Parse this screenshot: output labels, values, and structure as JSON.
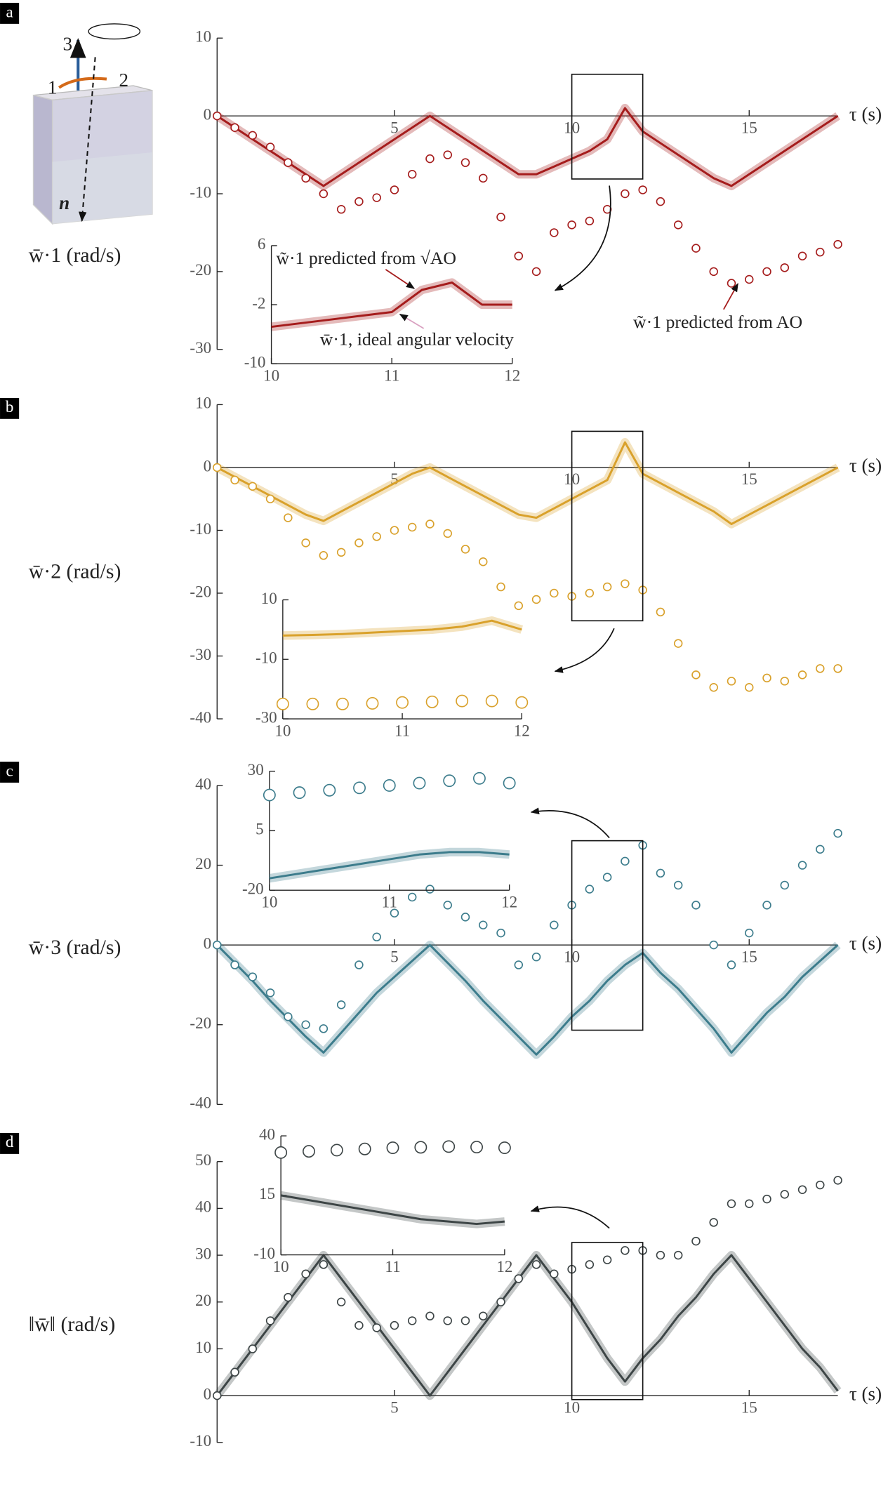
{
  "chart_data": [
    {
      "type": "line",
      "panel": "a",
      "ylabel": "w̄·1 (rad/s)",
      "xlabel": "τ (s)",
      "xlim": [
        0,
        17.5
      ],
      "ylim": [
        -30,
        10
      ],
      "xticks": [
        5,
        10,
        15
      ],
      "yticks": [
        10,
        0,
        -10,
        -20,
        -30
      ],
      "diagram_labels": [
        "3",
        "1",
        "2",
        "n"
      ],
      "annotations": [
        "w̃·1 predicted from √AO",
        "w̄·1, ideal angular velocity",
        "w̃·1 predicted from AO"
      ],
      "x": [
        0,
        0.5,
        1,
        1.5,
        2,
        2.5,
        3,
        3.5,
        4,
        4.5,
        5,
        5.5,
        6,
        6.5,
        7,
        7.5,
        8,
        8.5,
        9,
        9.5,
        10,
        10.5,
        11,
        11.5,
        12,
        12.5,
        13,
        13.5,
        14,
        14.5,
        15,
        15.5,
        16,
        16.5,
        17,
        17.5
      ],
      "series": [
        {
          "color": "#a51c1c",
          "band": true,
          "values": [
            0,
            -1.5,
            -3,
            -4.5,
            -6,
            -7.5,
            -9,
            -7.5,
            -6,
            -4.5,
            -3,
            -1.5,
            0,
            -1.5,
            -3,
            -4.5,
            -6,
            -7.5,
            -7.5,
            -6.5,
            -5.5,
            -4.5,
            -3,
            1,
            -2,
            -3.5,
            -5,
            -6.5,
            -8,
            -9,
            -7.5,
            -6,
            -4.5,
            -3,
            -1.5,
            0
          ]
        },
        {
          "color": "#a51c1c",
          "marker": "circle",
          "values": [
            0,
            -1.5,
            -2.5,
            -4,
            -6,
            -8,
            -10,
            -12,
            -11,
            -10.5,
            -9.5,
            -7.5,
            -5.5,
            -5,
            -6,
            -8,
            -13,
            -18,
            -20,
            -15,
            -14,
            -13.5,
            -12,
            -10,
            -9.5,
            -11,
            -14,
            -17,
            -20,
            -21.5,
            -21,
            -20,
            -19.5,
            -18,
            -17.5,
            -16.5
          ]
        }
      ],
      "inset": {
        "xlim": [
          10,
          12
        ],
        "ylim": [
          -10,
          6
        ],
        "xticks": [
          10,
          11,
          12
        ],
        "yticks": [
          6,
          -2,
          -10
        ],
        "x": [
          10,
          10.25,
          10.5,
          10.75,
          11,
          11.25,
          11.5,
          11.75,
          12
        ],
        "series": [
          {
            "color": "#a51c1c",
            "band": true,
            "values": [
              -5,
              -4.5,
              -4,
              -3.5,
              -3,
              0,
              1,
              -2,
              -2
            ]
          }
        ]
      }
    },
    {
      "type": "line",
      "panel": "b",
      "ylabel": "w̄·2 (rad/s)",
      "xlabel": "τ (s)",
      "xlim": [
        0,
        17.5
      ],
      "ylim": [
        -40,
        10
      ],
      "xticks": [
        5,
        10,
        15
      ],
      "yticks": [
        10,
        0,
        -10,
        -20,
        -30,
        -40
      ],
      "x": [
        0,
        0.5,
        1,
        1.5,
        2,
        2.5,
        3,
        3.5,
        4,
        4.5,
        5,
        5.5,
        6,
        6.5,
        7,
        7.5,
        8,
        8.5,
        9,
        9.5,
        10,
        10.5,
        11,
        11.5,
        12,
        12.5,
        13,
        13.5,
        14,
        14.5,
        15,
        15.5,
        16,
        16.5,
        17,
        17.5
      ],
      "series": [
        {
          "color": "#d9a12b",
          "band": true,
          "values": [
            0,
            -1.5,
            -3,
            -4.5,
            -6,
            -7.5,
            -8.5,
            -7,
            -5.5,
            -4,
            -2.5,
            -1,
            0,
            -1.5,
            -3,
            -4.5,
            -6,
            -7.5,
            -8,
            -6.5,
            -5,
            -3.5,
            -2,
            4,
            -1,
            -2.5,
            -4,
            -5.5,
            -7,
            -9,
            -7.5,
            -6,
            -4.5,
            -3,
            -1.5,
            0
          ]
        },
        {
          "color": "#d9a12b",
          "marker": "circle",
          "values": [
            0,
            -2,
            -3,
            -5,
            -8,
            -12,
            -14,
            -13.5,
            -12,
            -11,
            -10,
            -9.5,
            -9,
            -10.5,
            -13,
            -15,
            -19,
            -22,
            -21,
            -20,
            -20.5,
            -20,
            -19,
            -18.5,
            -19.5,
            -23,
            -28,
            -33,
            -35,
            -34,
            -35,
            -33.5,
            -34,
            -33,
            -32,
            -32
          ]
        }
      ],
      "inset": {
        "xlim": [
          10,
          12
        ],
        "ylim": [
          -30,
          10
        ],
        "xticks": [
          10,
          11,
          12
        ],
        "yticks": [
          10,
          -10,
          -30
        ],
        "x": [
          10,
          10.25,
          10.5,
          10.75,
          11,
          11.25,
          11.5,
          11.75,
          12
        ],
        "series": [
          {
            "color": "#d9a12b",
            "band": true,
            "values": [
              -2,
              -1.8,
              -1.5,
              -1,
              -0.5,
              0,
              1,
              3,
              0
            ]
          },
          {
            "color": "#d9a12b",
            "marker": "circle",
            "values": [
              -25,
              -25,
              -25,
              -24.8,
              -24.5,
              -24.3,
              -24,
              -24,
              -24.5
            ]
          }
        ]
      }
    },
    {
      "type": "line",
      "panel": "c",
      "ylabel": "w̄·3 (rad/s)",
      "xlabel": "τ (s)",
      "xlim": [
        0,
        17.5
      ],
      "ylim": [
        -40,
        40
      ],
      "xticks": [
        5,
        10,
        15
      ],
      "yticks": [
        40,
        20,
        0,
        -20,
        -40
      ],
      "x": [
        0,
        0.5,
        1,
        1.5,
        2,
        2.5,
        3,
        3.5,
        4,
        4.5,
        5,
        5.5,
        6,
        6.5,
        7,
        7.5,
        8,
        8.5,
        9,
        9.5,
        10,
        10.5,
        11,
        11.5,
        12,
        12.5,
        13,
        13.5,
        14,
        14.5,
        15,
        15.5,
        16,
        16.5,
        17,
        17.5
      ],
      "series": [
        {
          "color": "#3c7c8c",
          "band": true,
          "values": [
            0,
            -4.5,
            -9,
            -14,
            -18.5,
            -23,
            -27,
            -22,
            -17,
            -12,
            -8,
            -4,
            0,
            -4.5,
            -9,
            -14,
            -18.5,
            -23,
            -27.5,
            -23,
            -18,
            -14,
            -9,
            -5,
            -2,
            -7,
            -11,
            -16,
            -21,
            -27,
            -22,
            -17,
            -13,
            -8,
            -4,
            0
          ]
        },
        {
          "color": "#3c7c8c",
          "marker": "circle",
          "values": [
            0,
            -5,
            -8,
            -12,
            -18,
            -20,
            -21,
            -15,
            -5,
            2,
            8,
            12,
            14,
            10,
            7,
            5,
            3,
            -5,
            -3,
            5,
            10,
            14,
            17,
            21,
            25,
            18,
            15,
            10,
            0,
            -5,
            3,
            10,
            15,
            20,
            24,
            28
          ]
        }
      ],
      "inset": {
        "xlim": [
          10,
          12
        ],
        "ylim": [
          -20,
          30
        ],
        "xticks": [
          10,
          11,
          12
        ],
        "yticks": [
          30,
          5,
          -20
        ],
        "x": [
          10,
          10.25,
          10.5,
          10.75,
          11,
          11.25,
          11.5,
          11.75,
          12
        ],
        "series": [
          {
            "color": "#3c7c8c",
            "band": true,
            "values": [
              -15,
              -13,
              -11,
              -9,
              -7,
              -5,
              -4,
              -4,
              -5
            ]
          },
          {
            "color": "#3c7c8c",
            "marker": "circle",
            "values": [
              20,
              21,
              22,
              23,
              24,
              25,
              26,
              27,
              25
            ]
          }
        ]
      }
    },
    {
      "type": "line",
      "panel": "d",
      "ylabel": "‖w̄‖ (rad/s)",
      "xlabel": "τ (s)",
      "xlim": [
        0,
        17.5
      ],
      "ylim": [
        -10,
        50
      ],
      "xticks": [
        5,
        10,
        15
      ],
      "yticks": [
        50,
        40,
        30,
        20,
        10,
        0,
        -10
      ],
      "x": [
        0,
        0.5,
        1,
        1.5,
        2,
        2.5,
        3,
        3.5,
        4,
        4.5,
        5,
        5.5,
        6,
        6.5,
        7,
        7.5,
        8,
        8.5,
        9,
        9.5,
        10,
        10.5,
        11,
        11.5,
        12,
        12.5,
        13,
        13.5,
        14,
        14.5,
        15,
        15.5,
        16,
        16.5,
        17,
        17.5
      ],
      "series": [
        {
          "color": "#3d4546",
          "band": true,
          "values": [
            0,
            5,
            10,
            15,
            20,
            25,
            30,
            25,
            20,
            15,
            10,
            5,
            0,
            5,
            10,
            15,
            20,
            25,
            30,
            25,
            20,
            14,
            8,
            3,
            8,
            12,
            17,
            21,
            26,
            30,
            25,
            20,
            15,
            10,
            6,
            1
          ]
        },
        {
          "color": "#3d4546",
          "marker": "circle",
          "values": [
            0,
            5,
            10,
            16,
            21,
            26,
            28,
            20,
            15,
            14.5,
            15,
            16,
            17,
            16,
            16,
            17,
            20,
            25,
            28,
            26,
            27,
            28,
            29,
            31,
            31,
            30,
            30,
            33,
            37,
            41,
            41,
            42,
            43,
            44,
            45,
            46
          ]
        }
      ],
      "inset": {
        "xlim": [
          10,
          12
        ],
        "ylim": [
          -10,
          40
        ],
        "xticks": [
          10,
          11,
          12
        ],
        "yticks": [
          40,
          15,
          -10
        ],
        "x": [
          10,
          10.25,
          10.5,
          10.75,
          11,
          11.25,
          11.5,
          11.75,
          12
        ],
        "series": [
          {
            "color": "#3d4546",
            "band": true,
            "values": [
              15,
              13,
              11,
              9,
              7,
              5,
              4,
              3,
              4
            ]
          },
          {
            "color": "#3d4546",
            "marker": "circle",
            "values": [
              33,
              33.5,
              34,
              34.5,
              35,
              35.2,
              35.5,
              35.3,
              35
            ]
          }
        ]
      }
    }
  ]
}
